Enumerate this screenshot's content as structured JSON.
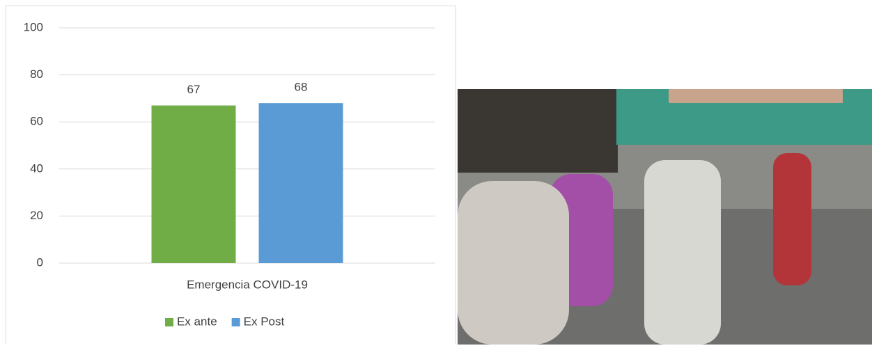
{
  "chart_data": {
    "type": "bar",
    "categories": [
      "Emergencia COVID-19"
    ],
    "series": [
      {
        "name": "Ex ante",
        "color": "#70ad47",
        "values": [
          67
        ]
      },
      {
        "name": "Ex Post",
        "color": "#5b9bd5",
        "values": [
          68
        ]
      }
    ],
    "ylim": [
      0,
      100
    ],
    "yticks": [
      0,
      20,
      40,
      60,
      80,
      100
    ],
    "grid": true,
    "legend": "bottom"
  }
}
